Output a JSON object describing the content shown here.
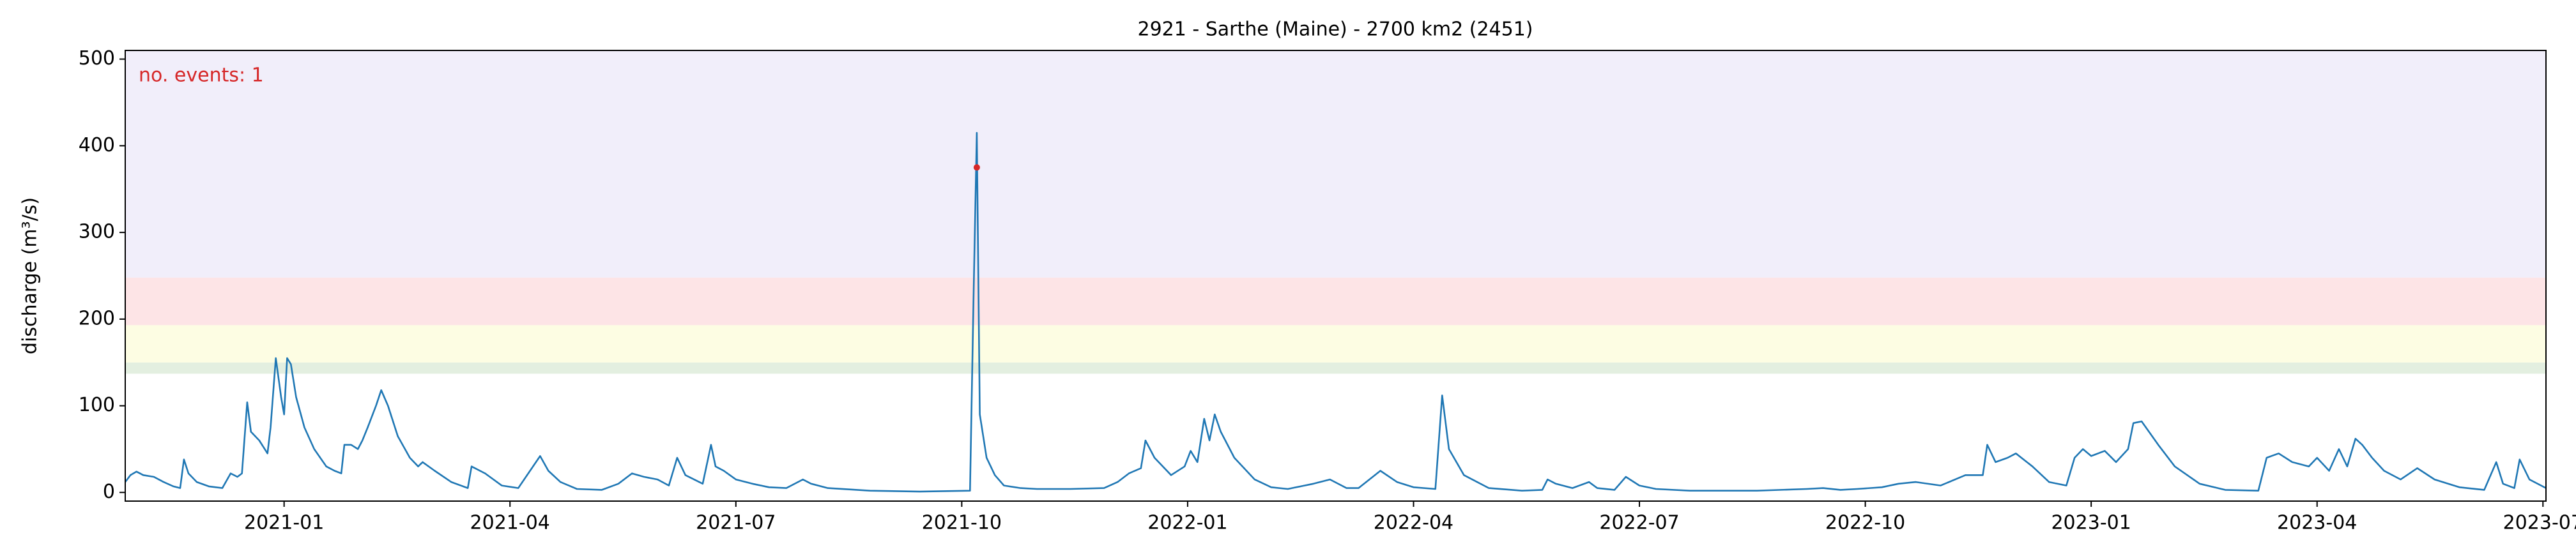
{
  "chart_data": {
    "type": "line",
    "title": "2921 - Sarthe (Maine) - 2700 km2 (2451)",
    "y_label": "discharge (m³/s)",
    "annotation": "no. events: 1",
    "annotation_color": "#d62728",
    "xlim": [
      -2.11,
      30.04
    ],
    "ylim": [
      -10,
      510
    ],
    "yticks": [
      0,
      100,
      200,
      300,
      400,
      500
    ],
    "xticks": [
      {
        "value": 0,
        "label": "2021-01"
      },
      {
        "value": 3,
        "label": "2021-04"
      },
      {
        "value": 6,
        "label": "2021-07"
      },
      {
        "value": 9,
        "label": "2021-10"
      },
      {
        "value": 12,
        "label": "2022-01"
      },
      {
        "value": 15,
        "label": "2022-04"
      },
      {
        "value": 18,
        "label": "2022-07"
      },
      {
        "value": 21,
        "label": "2022-10"
      },
      {
        "value": 24,
        "label": "2023-01"
      },
      {
        "value": 27,
        "label": "2023-04"
      },
      {
        "value": 30,
        "label": "2023-07"
      }
    ],
    "bands": [
      {
        "from": 137,
        "to": 150,
        "color": "#e3efe0"
      },
      {
        "from": 150,
        "to": 193,
        "color": "#fdfde3"
      },
      {
        "from": 193,
        "to": 248,
        "color": "#fde4e6"
      },
      {
        "from": 248,
        "to": 510,
        "color": "#f1eefa"
      }
    ],
    "events": [
      {
        "x": 9.2,
        "y": 375
      }
    ],
    "event_color": "#d62728",
    "series": [
      {
        "color": "#1f77b4",
        "x": [
          -2.11,
          -2.04,
          -1.96,
          -1.87,
          -1.73,
          -1.6,
          -1.47,
          -1.38,
          -1.33,
          -1.27,
          -1.16,
          -1.0,
          -0.82,
          -0.71,
          -0.62,
          -0.56,
          -0.49,
          -0.44,
          -0.33,
          -0.22,
          -0.18,
          -0.11,
          -0.04,
          0,
          0.04,
          0.09,
          0.16,
          0.27,
          0.4,
          0.56,
          0.67,
          0.76,
          0.8,
          0.89,
          0.98,
          1.04,
          1.11,
          1.22,
          1.29,
          1.38,
          1.51,
          1.67,
          1.78,
          1.84,
          2.0,
          2.22,
          2.44,
          2.49,
          2.67,
          2.89,
          3.11,
          3.4,
          3.51,
          3.67,
          3.89,
          4.22,
          4.44,
          4.62,
          4.78,
          4.96,
          5.11,
          5.22,
          5.33,
          5.56,
          5.67,
          5.73,
          5.84,
          6.0,
          6.22,
          6.44,
          6.67,
          6.89,
          7.0,
          7.22,
          7.78,
          8.44,
          9.11,
          9.16,
          9.2,
          9.24,
          9.33,
          9.44,
          9.56,
          9.78,
          10.0,
          10.44,
          10.89,
          11.07,
          11.22,
          11.38,
          11.44,
          11.56,
          11.78,
          11.96,
          12.04,
          12.13,
          12.22,
          12.29,
          12.36,
          12.44,
          12.62,
          12.89,
          13.11,
          13.33,
          13.67,
          13.89,
          14.11,
          14.27,
          14.56,
          14.78,
          15.0,
          15.29,
          15.38,
          15.47,
          15.67,
          16.0,
          16.44,
          16.71,
          16.78,
          16.89,
          17.11,
          17.33,
          17.44,
          17.67,
          17.82,
          18.0,
          18.22,
          18.67,
          19.56,
          20.22,
          20.44,
          20.67,
          20.89,
          21.22,
          21.44,
          21.67,
          22.0,
          22.33,
          22.56,
          22.62,
          22.73,
          22.89,
          23.0,
          23.22,
          23.44,
          23.67,
          23.78,
          23.89,
          24.0,
          24.18,
          24.33,
          24.49,
          24.56,
          24.67,
          24.89,
          25.11,
          25.44,
          25.78,
          26.22,
          26.33,
          26.49,
          26.67,
          26.89,
          27.0,
          27.16,
          27.29,
          27.4,
          27.51,
          27.6,
          27.73,
          27.89,
          28.11,
          28.33,
          28.56,
          28.89,
          29.22,
          29.38,
          29.47,
          29.62,
          29.69,
          29.82,
          30.04
        ],
        "values": [
          12,
          20,
          24,
          20,
          18,
          12,
          7,
          5,
          38,
          22,
          12,
          7,
          5,
          22,
          18,
          22,
          104,
          70,
          60,
          45,
          75,
          155,
          110,
          90,
          155,
          148,
          110,
          75,
          50,
          30,
          25,
          22,
          55,
          55,
          50,
          60,
          75,
          100,
          118,
          100,
          65,
          40,
          30,
          35,
          25,
          12,
          5,
          30,
          22,
          8,
          5,
          42,
          25,
          12,
          4,
          3,
          10,
          22,
          18,
          15,
          8,
          40,
          20,
          10,
          55,
          30,
          25,
          15,
          10,
          6,
          5,
          15,
          10,
          5,
          2,
          1,
          2,
          240,
          415,
          90,
          40,
          20,
          8,
          5,
          4,
          4,
          5,
          12,
          22,
          28,
          60,
          40,
          20,
          30,
          48,
          35,
          85,
          60,
          90,
          70,
          40,
          15,
          6,
          4,
          10,
          15,
          5,
          5,
          25,
          12,
          6,
          4,
          112,
          50,
          20,
          5,
          2,
          3,
          15,
          10,
          5,
          12,
          5,
          3,
          18,
          8,
          4,
          2,
          2,
          4,
          5,
          3,
          4,
          6,
          10,
          12,
          8,
          20,
          20,
          55,
          35,
          40,
          45,
          30,
          12,
          8,
          40,
          50,
          42,
          48,
          35,
          50,
          80,
          82,
          55,
          30,
          10,
          3,
          2,
          40,
          45,
          35,
          30,
          40,
          25,
          50,
          30,
          62,
          55,
          40,
          25,
          15,
          28,
          15,
          6,
          3,
          35,
          10,
          5,
          38,
          15,
          5
        ]
      }
    ]
  }
}
